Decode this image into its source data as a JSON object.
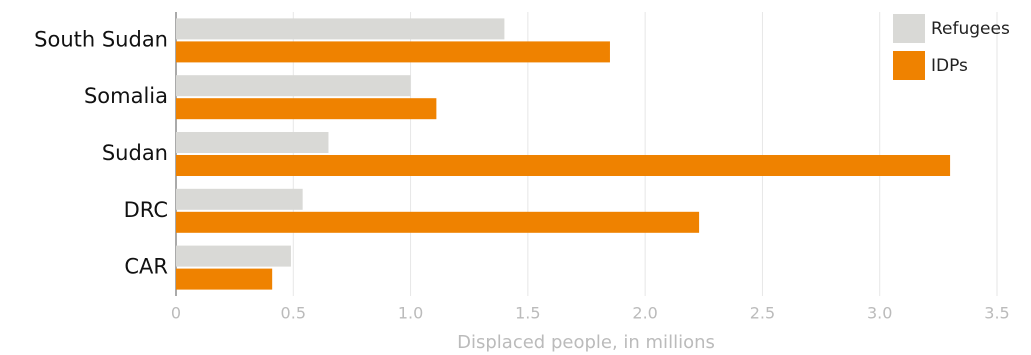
{
  "chart_data": {
    "type": "hbar",
    "categories": [
      "South Sudan",
      "Somalia",
      "Sudan",
      "DRC",
      "CAR"
    ],
    "series": [
      {
        "name": "Refugees",
        "color": "#d9d9d6",
        "values": [
          1.4,
          1.0,
          0.65,
          0.54,
          0.49
        ]
      },
      {
        "name": "IDPs",
        "color": "#ef8200",
        "values": [
          1.85,
          1.11,
          3.3,
          2.23,
          0.41
        ]
      }
    ],
    "xlabel": "Displaced people, in millions",
    "xlim": [
      0,
      3.5
    ],
    "xticks": [
      0,
      0.5,
      {
        "value": 1,
        "label": "1.0"
      },
      1.5,
      {
        "value": 2,
        "label": "2.0"
      },
      2.5,
      {
        "value": 3,
        "label": "3.0"
      },
      3.5
    ],
    "grid": true,
    "legend": "top-right"
  }
}
